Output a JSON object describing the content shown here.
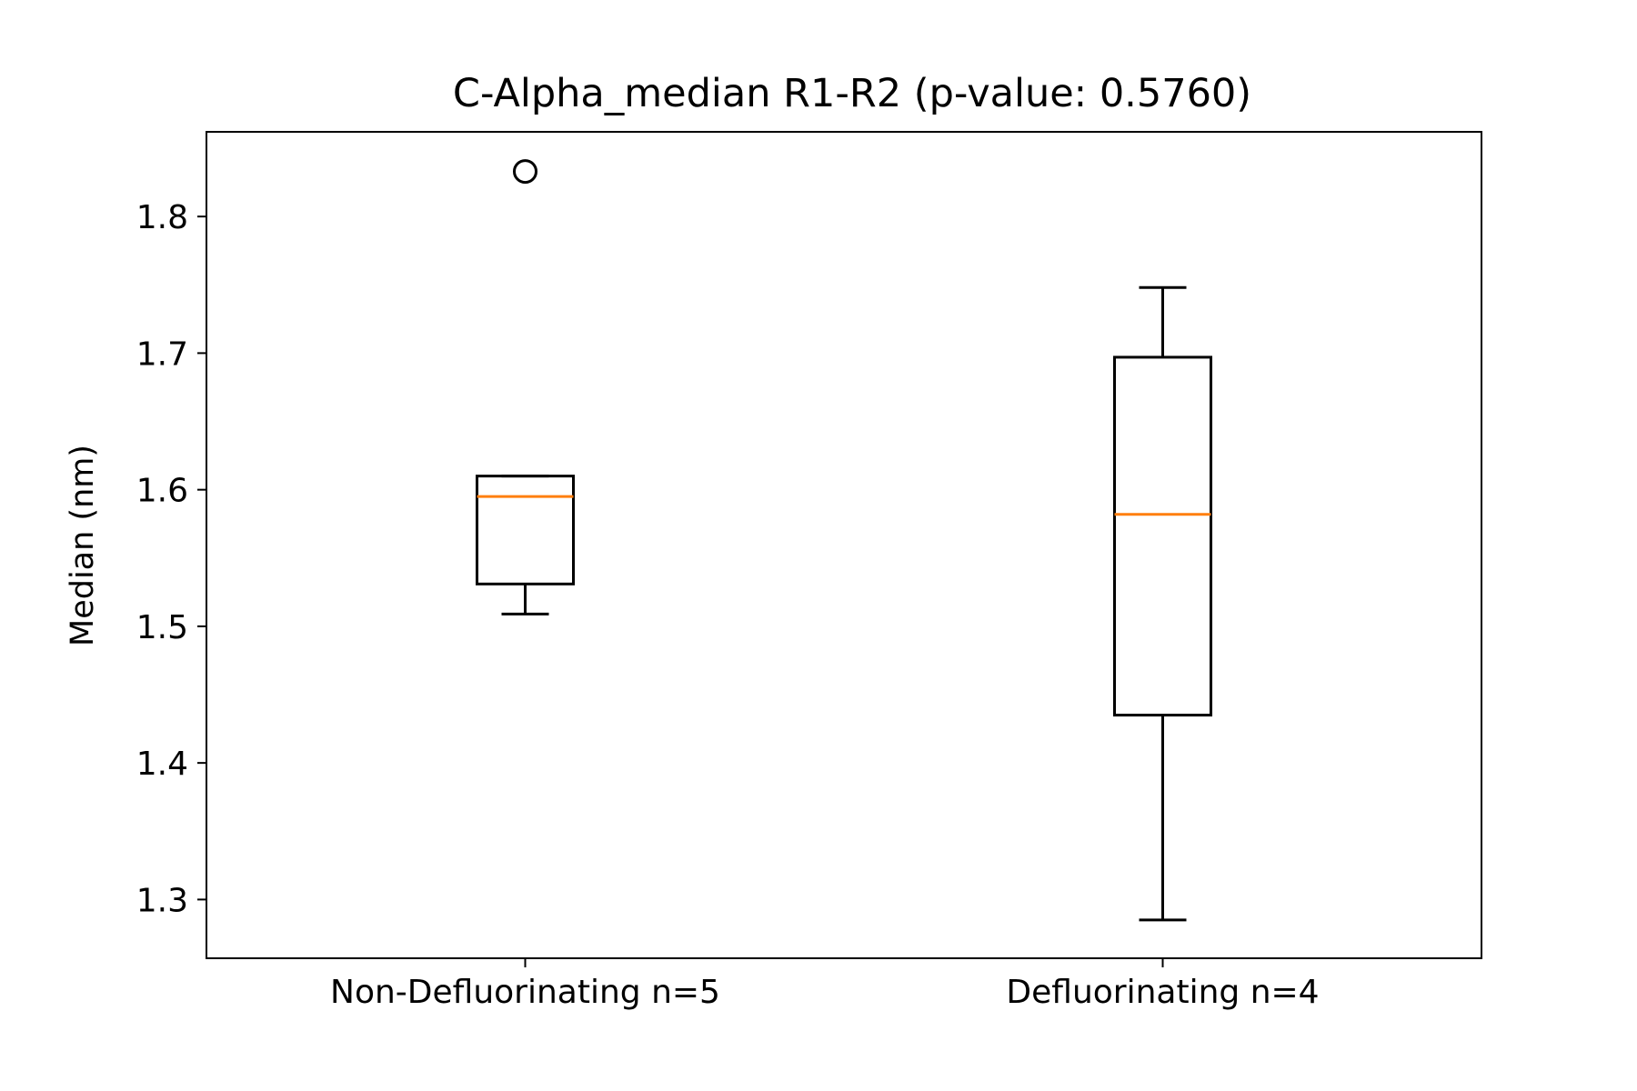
{
  "chart_data": {
    "type": "box",
    "title": "C-Alpha_median R1-R2 (p-value: 0.5760)",
    "xlabel": "",
    "ylabel": "Median (nm)",
    "ylim": [
      1.257,
      1.862
    ],
    "yticks": [
      1.3,
      1.4,
      1.5,
      1.6,
      1.7,
      1.8
    ],
    "ytick_labels": [
      "1.3",
      "1.4",
      "1.5",
      "1.6",
      "1.7",
      "1.8"
    ],
    "grid": false,
    "median_color": "#ff7f0e",
    "box_color": "#000000",
    "categories": [
      "Non-Defluorinating n=5",
      "Defluorinating n=4"
    ],
    "boxes": [
      {
        "label": "Non-Defluorinating n=5",
        "whisker_low": 1.509,
        "q1": 1.531,
        "median": 1.595,
        "q3": 1.61,
        "whisker_high": 1.61,
        "fliers": [
          1.833
        ]
      },
      {
        "label": "Defluorinating n=4",
        "whisker_low": 1.285,
        "q1": 1.435,
        "median": 1.582,
        "q3": 1.697,
        "whisker_high": 1.748,
        "fliers": []
      }
    ]
  }
}
